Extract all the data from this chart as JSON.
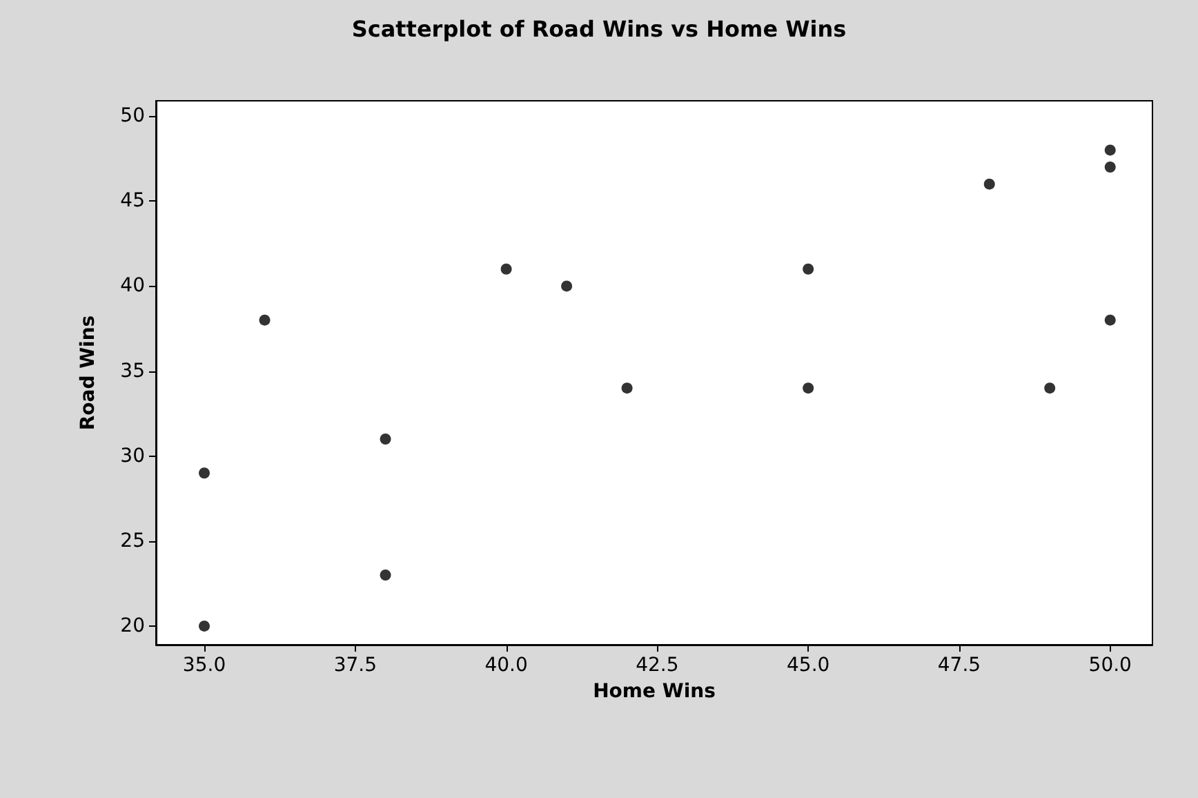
{
  "chart_data": {
    "type": "scatter",
    "title": "Scatterplot of Road Wins vs Home Wins",
    "xlabel": "Home Wins",
    "ylabel": "Road Wins",
    "x": [
      35,
      35,
      36,
      38,
      38,
      40,
      41,
      42,
      45,
      45,
      48,
      49,
      50,
      50,
      50
    ],
    "values": [
      29,
      20,
      38,
      31,
      23,
      41,
      40,
      34,
      41,
      34,
      46,
      34,
      48,
      47,
      38
    ],
    "color": "#000000",
    "marker": "circle",
    "grid": false,
    "xlim": [
      34.2,
      50.7
    ],
    "xticks": [
      {
        "value": 35,
        "label": "35.0"
      },
      {
        "value": 37.5,
        "label": "37.5"
      },
      {
        "value": 40,
        "label": "40.0"
      },
      {
        "value": 42.5,
        "label": "42.5"
      },
      {
        "value": 45,
        "label": "45.0"
      },
      {
        "value": 47.5,
        "label": "47.5"
      },
      {
        "value": 50,
        "label": "50.0"
      }
    ],
    "ylim": [
      18.9,
      50.9
    ],
    "yticks": [
      20,
      25,
      30,
      35,
      40,
      45,
      50
    ]
  }
}
